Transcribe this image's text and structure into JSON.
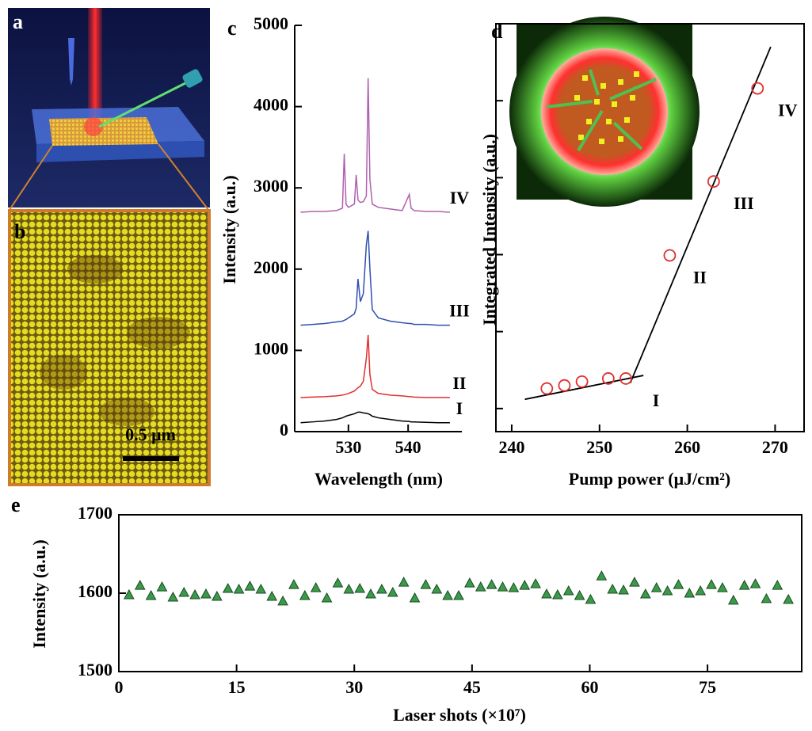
{
  "figure_images": [
    {
      "panel_label": "a"
    },
    {
      "panel_label": "b",
      "scale_bar_label": "0.5 μm"
    }
  ],
  "chart_data": [
    {
      "type": "line",
      "panel_label": "c",
      "xlabel": "Wavelength (nm)",
      "ylabel": "Intensity (a.u.)",
      "frame": false,
      "series_labels_at_end": true,
      "x": [
        522,
        524,
        526,
        528,
        529,
        529.3,
        529.6,
        530,
        531,
        531.3,
        531.6,
        532,
        532.5,
        533,
        533.3,
        533.6,
        534,
        535,
        537,
        539,
        540.2,
        540.5,
        541,
        543,
        545,
        547
      ],
      "series": [
        {
          "name": "I",
          "color": "#000000",
          "values": [
            110,
            120,
            130,
            150,
            170,
            180,
            190,
            200,
            220,
            230,
            240,
            240,
            230,
            225,
            220,
            210,
            190,
            170,
            150,
            130,
            125,
            120,
            120,
            115,
            110,
            110
          ]
        },
        {
          "name": "II",
          "color": "#e03030",
          "values": [
            420,
            425,
            430,
            440,
            450,
            455,
            460,
            470,
            500,
            520,
            540,
            560,
            620,
            900,
            1190,
            700,
            520,
            470,
            450,
            440,
            430,
            430,
            425,
            420,
            420,
            420
          ]
        },
        {
          "name": "III",
          "color": "#3050b0",
          "values": [
            1310,
            1320,
            1330,
            1350,
            1360,
            1370,
            1380,
            1400,
            1450,
            1520,
            1880,
            1600,
            1700,
            2300,
            2470,
            2000,
            1500,
            1400,
            1360,
            1340,
            1330,
            1330,
            1320,
            1320,
            1310,
            1310
          ]
        },
        {
          "name": "IV",
          "color": "#b060b0",
          "values": [
            2700,
            2710,
            2710,
            2720,
            2750,
            3420,
            2800,
            2760,
            2800,
            3160,
            2850,
            2820,
            2830,
            2900,
            4350,
            3100,
            2800,
            2760,
            2740,
            2720,
            2920,
            2750,
            2720,
            2710,
            2710,
            2700
          ]
        }
      ],
      "xlim": [
        521,
        549
      ],
      "ylim": [
        0,
        5000
      ],
      "xticks": [
        530,
        540
      ],
      "yticks": [
        0,
        1000,
        2000,
        3000,
        4000,
        5000
      ]
    },
    {
      "type": "scatter",
      "panel_label": "d",
      "xlabel": "Pump power (μJ/cm²)",
      "ylabel": "Integrated Intensity (a.u.)",
      "frame": true,
      "marker": "open-circle",
      "color": "#e03030",
      "x": [
        244,
        246,
        248,
        251,
        253,
        258,
        263,
        268
      ],
      "values": [
        1.26,
        1.3,
        1.35,
        1.39,
        1.39,
        2.99,
        3.95,
        5.16
      ],
      "labels": [
        null,
        null,
        null,
        null,
        "I",
        "II",
        "III",
        "IV"
      ],
      "fits": [
        {
          "x": [
            241.5,
            255
          ],
          "values": [
            1.12,
            1.43
          ]
        },
        {
          "x": [
            253.5,
            269.5
          ],
          "values": [
            1.33,
            5.7
          ]
        }
      ],
      "fit_color": "#000000",
      "xlim": [
        238.2,
        273.3
      ],
      "ylim": [
        0.7,
        6
      ],
      "xticks": [
        240,
        250,
        260,
        270
      ],
      "yticks": [
        1,
        2,
        3,
        4,
        5
      ],
      "ytick_labels": false
    },
    {
      "type": "scatter",
      "panel_label": "e",
      "xlabel": "Laser shots (×10⁷)",
      "ylabel": "Intensity (a.u.)",
      "frame": true,
      "marker": "triangle",
      "color": "#3a9a4a",
      "x": [
        1.3,
        2.7,
        4.1,
        5.5,
        6.9,
        8.3,
        9.7,
        11.1,
        12.5,
        13.9,
        15.3,
        16.7,
        18.1,
        19.5,
        20.9,
        22.3,
        23.7,
        25.1,
        26.5,
        27.9,
        29.3,
        30.7,
        32.1,
        33.5,
        34.9,
        36.3,
        37.7,
        39.1,
        40.5,
        41.9,
        43.3,
        44.7,
        46.1,
        47.5,
        48.9,
        50.3,
        51.7,
        53.1,
        54.5,
        55.9,
        57.3,
        58.7,
        60.1,
        61.5,
        62.9,
        64.3,
        65.7,
        67.1,
        68.5,
        69.9,
        71.3,
        72.7,
        74.1,
        75.5,
        76.9,
        78.3,
        79.7,
        81.1,
        82.5,
        83.9,
        85.3
      ],
      "values": [
        1598,
        1610,
        1597,
        1608,
        1595,
        1601,
        1598,
        1599,
        1596,
        1606,
        1605,
        1609,
        1605,
        1596,
        1590,
        1611,
        1597,
        1607,
        1594,
        1613,
        1605,
        1606,
        1599,
        1605,
        1601,
        1614,
        1594,
        1611,
        1605,
        1597,
        1597,
        1613,
        1608,
        1611,
        1608,
        1607,
        1610,
        1612,
        1599,
        1598,
        1603,
        1597,
        1592,
        1622,
        1605,
        1604,
        1614,
        1599,
        1607,
        1603,
        1611,
        1600,
        1603,
        1611,
        1607,
        1591,
        1610,
        1612,
        1593,
        1610,
        1592
      ],
      "xlim": [
        0,
        87
      ],
      "ylim": [
        1500,
        1700
      ],
      "xticks": [
        0,
        15,
        30,
        45,
        60,
        75
      ],
      "yticks": [
        1500,
        1600,
        1700
      ]
    }
  ]
}
